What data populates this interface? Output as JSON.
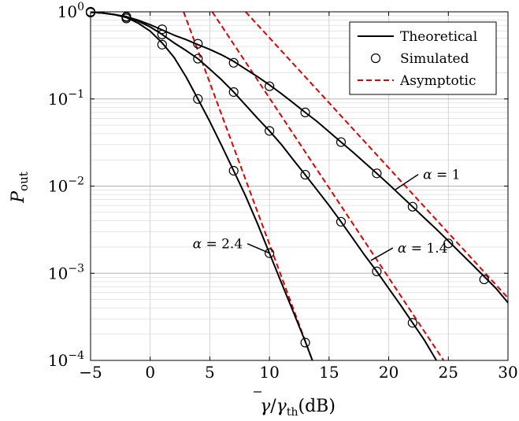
{
  "chart_data": {
    "type": "line",
    "title": "",
    "xlabel_main": "γ",
    "xlabel_div": "/",
    "xlabel_sub_base": "γ",
    "xlabel_sub": "th",
    "xlabel_unit": "(dB)",
    "ylabel_main": "P",
    "ylabel_sub": "out",
    "xlim": [
      -5,
      30
    ],
    "ylim": [
      0.0001,
      1
    ],
    "yscale": "log",
    "grid": true,
    "legend_position": "top-right",
    "x_ticks": [
      -5,
      0,
      5,
      10,
      15,
      20,
      25,
      30
    ],
    "x_tick_labels": [
      "−5",
      "0",
      "5",
      "10",
      "15",
      "20",
      "25",
      "30"
    ],
    "y_ticks": [
      {
        "value": 1,
        "base": "10",
        "exp": "0"
      },
      {
        "value": 0.1,
        "base": "10",
        "exp": "−1"
      },
      {
        "value": 0.01,
        "base": "10",
        "exp": "−2"
      },
      {
        "value": 0.001,
        "base": "10",
        "exp": "−3"
      },
      {
        "value": 0.0001,
        "base": "10",
        "exp": "−4"
      }
    ],
    "legend": [
      {
        "label": "Theoretical",
        "style": "solid-line",
        "color": "#000000"
      },
      {
        "label": "Simulated",
        "style": "circle-marker",
        "color": "#000000"
      },
      {
        "label": "Asymptotic",
        "style": "dashed-line",
        "color": "#e00000"
      }
    ],
    "series": [
      {
        "kind": "theoretical",
        "alpha": 1,
        "x": [
          -5,
          -4,
          -3,
          -2,
          -1,
          0,
          1,
          2,
          3,
          4,
          5,
          6,
          7,
          8,
          9,
          10,
          11,
          12,
          13,
          14,
          15,
          16,
          17,
          18,
          19,
          20,
          21,
          22,
          23,
          24,
          25,
          26,
          27,
          28,
          29,
          30
        ],
        "y": [
          0.99,
          0.97,
          0.93,
          0.88,
          0.8,
          0.71,
          0.62,
          0.54,
          0.48,
          0.42,
          0.37,
          0.32,
          0.27,
          0.22,
          0.18,
          0.145,
          0.115,
          0.09,
          0.07,
          0.055,
          0.042,
          0.032,
          0.0245,
          0.0185,
          0.014,
          0.0105,
          0.0078,
          0.0058,
          0.0043,
          0.0032,
          0.00235,
          0.00172,
          0.00126,
          0.00092,
          0.00067,
          0.00046
        ]
      },
      {
        "kind": "theoretical",
        "alpha": 1.4,
        "x": [
          -5,
          -4,
          -3,
          -2,
          -1,
          0,
          1,
          2,
          3,
          4,
          5,
          6,
          7,
          8,
          9,
          10,
          11,
          12,
          13,
          14,
          15,
          16,
          17,
          18,
          19,
          20,
          21,
          22,
          23,
          24
        ],
        "y": [
          0.99,
          0.97,
          0.93,
          0.87,
          0.78,
          0.67,
          0.55,
          0.44,
          0.36,
          0.29,
          0.22,
          0.165,
          0.12,
          0.085,
          0.06,
          0.043,
          0.03,
          0.02,
          0.0135,
          0.009,
          0.006,
          0.0039,
          0.0025,
          0.0016,
          0.00105,
          0.00067,
          0.00043,
          0.00027,
          0.00017,
          0.0001
        ]
      },
      {
        "kind": "theoretical",
        "alpha": 2.4,
        "x": [
          -5,
          -4,
          -3,
          -2,
          -1,
          0,
          1,
          2,
          3,
          4,
          5,
          6,
          7,
          8,
          9,
          10,
          11,
          12,
          13,
          13.6
        ],
        "y": [
          0.99,
          0.97,
          0.93,
          0.86,
          0.74,
          0.6,
          0.44,
          0.3,
          0.18,
          0.1,
          0.055,
          0.029,
          0.015,
          0.0077,
          0.0037,
          0.0017,
          0.00078,
          0.00036,
          0.000165,
          0.0001
        ]
      },
      {
        "kind": "simulated",
        "alpha": 1,
        "x": [
          -5,
          -2,
          1,
          4,
          7,
          10,
          13,
          16,
          19,
          22,
          25,
          28
        ],
        "y": [
          1.0,
          0.88,
          0.63,
          0.43,
          0.26,
          0.14,
          0.07,
          0.032,
          0.014,
          0.0058,
          0.0022,
          0.00085
        ]
      },
      {
        "kind": "simulated",
        "alpha": 1.4,
        "x": [
          -5,
          -2,
          1,
          4,
          7,
          10,
          13,
          16,
          19,
          22
        ],
        "y": [
          1.0,
          0.87,
          0.55,
          0.29,
          0.12,
          0.043,
          0.0135,
          0.0039,
          0.00105,
          0.00027
        ]
      },
      {
        "kind": "simulated",
        "alpha": 2.4,
        "x": [
          -5,
          -2,
          1,
          4,
          7,
          10,
          13
        ],
        "y": [
          0.98,
          0.84,
          0.42,
          0.1,
          0.015,
          0.0017,
          0.00016
        ]
      },
      {
        "kind": "asymptotic",
        "alpha": 1,
        "x": [
          8,
          30
        ],
        "y": [
          1.0,
          0.00052
        ]
      },
      {
        "kind": "asymptotic",
        "alpha": 1.4,
        "x": [
          5.2,
          24.6
        ],
        "y": [
          1.0,
          0.0001
        ]
      },
      {
        "kind": "asymptotic",
        "alpha": 2.4,
        "x": [
          2.8,
          13.6
        ],
        "y": [
          1.0,
          0.0001
        ]
      }
    ],
    "annotations": [
      {
        "symbol": "α",
        "text": " = 1",
        "target_x": 20.5,
        "target_y": 0.009
      },
      {
        "symbol": "α",
        "text": " = 1.4",
        "target_x": 18.5,
        "target_y": 0.0014
      },
      {
        "symbol": "α",
        "text": " = 2.4",
        "target_x": 10.0,
        "target_y": 0.0017
      }
    ]
  }
}
